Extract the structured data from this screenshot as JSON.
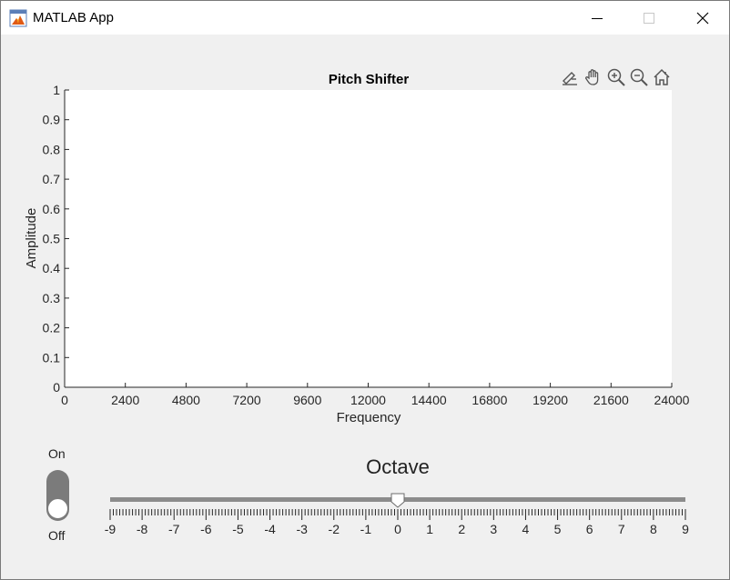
{
  "window": {
    "title": "MATLAB App",
    "minimize_icon": "minimize-icon",
    "maximize_icon": "maximize-icon",
    "close_icon": "close-icon"
  },
  "axes_toolbar": [
    "brush-icon",
    "pan-icon",
    "zoom-in-icon",
    "zoom-out-icon",
    "home-icon"
  ],
  "chart_data": {
    "type": "line",
    "title": "Pitch Shifter",
    "xlabel": "Frequency",
    "ylabel": "Amplitude",
    "xlim": [
      0,
      24000
    ],
    "ylim": [
      0,
      1
    ],
    "x_ticks": [
      "0",
      "2400",
      "4800",
      "7200",
      "9600",
      "12000",
      "14400",
      "16800",
      "19200",
      "21600",
      "24000"
    ],
    "y_ticks": [
      "0",
      "0.1",
      "0.2",
      "0.3",
      "0.4",
      "0.5",
      "0.6",
      "0.7",
      "0.8",
      "0.9",
      "1"
    ],
    "series": [],
    "grid": false
  },
  "toggle": {
    "on_label": "On",
    "off_label": "Off",
    "value": "Off"
  },
  "slider": {
    "title": "Octave",
    "min": -9,
    "max": 9,
    "value": 0,
    "major_ticks": [
      "-9",
      "-8",
      "-7",
      "-6",
      "-5",
      "-4",
      "-3",
      "-2",
      "-1",
      "0",
      "1",
      "2",
      "3",
      "4",
      "5",
      "6",
      "7",
      "8",
      "9"
    ],
    "minor_ticks_per_major": 9
  }
}
